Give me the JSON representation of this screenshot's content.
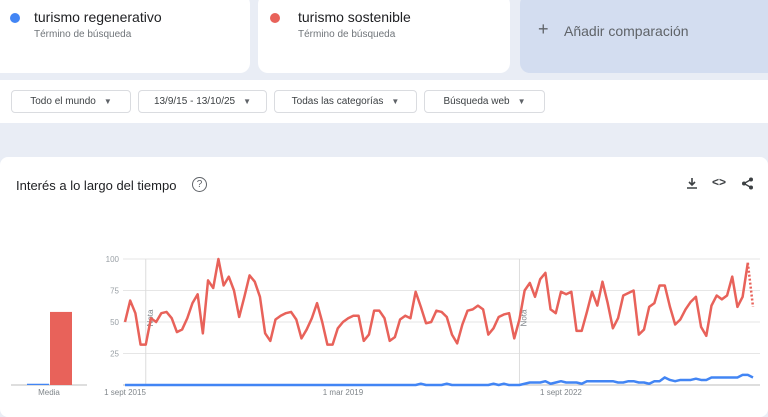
{
  "terms": [
    {
      "label": "turismo regenerativo",
      "sublabel": "Término de búsqueda",
      "color": "#4285f4"
    },
    {
      "label": "turismo sostenible",
      "sublabel": "Término de búsqueda",
      "color": "#e8625a"
    }
  ],
  "add_comparison": {
    "icon": "plus-icon",
    "label": "Añadir comparación"
  },
  "filters": {
    "region": "Todo el mundo",
    "dates": "13/9/15 - 13/10/25",
    "category": "Todas las categorías",
    "search_type": "Búsqueda web"
  },
  "section": {
    "title": "Interés a lo largo del tiempo",
    "icons": [
      "help-icon",
      "download-icon",
      "embed-icon",
      "share-icon"
    ]
  },
  "chart_data": {
    "type": "line",
    "ylim": [
      0,
      100
    ],
    "y_ticks": [
      "100",
      "75",
      "50",
      "25"
    ],
    "x_tick_labels": [
      {
        "x": "2015-09",
        "label": "1 sept 2015"
      },
      {
        "x": "2019-03",
        "label": "1 mar 2019"
      },
      {
        "x": "2022-09",
        "label": "1 sept 2022"
      }
    ],
    "notes": [
      {
        "x": "2016-01",
        "label": "Nota"
      },
      {
        "x": "2022-01",
        "label": "Nota"
      }
    ],
    "grid": true,
    "average": {
      "label": "Media",
      "values": [
        1,
        58
      ]
    },
    "x": [
      "2015-09",
      "2015-10",
      "2015-11",
      "2015-12",
      "2016-01",
      "2016-02",
      "2016-03",
      "2016-04",
      "2016-05",
      "2016-06",
      "2016-07",
      "2016-08",
      "2016-09",
      "2016-10",
      "2016-11",
      "2016-12",
      "2017-01",
      "2017-02",
      "2017-03",
      "2017-04",
      "2017-05",
      "2017-06",
      "2017-07",
      "2017-08",
      "2017-09",
      "2017-10",
      "2017-11",
      "2017-12",
      "2018-01",
      "2018-02",
      "2018-03",
      "2018-04",
      "2018-05",
      "2018-06",
      "2018-07",
      "2018-08",
      "2018-09",
      "2018-10",
      "2018-11",
      "2018-12",
      "2019-01",
      "2019-02",
      "2019-03",
      "2019-04",
      "2019-05",
      "2019-06",
      "2019-07",
      "2019-08",
      "2019-09",
      "2019-10",
      "2019-11",
      "2019-12",
      "2020-01",
      "2020-02",
      "2020-03",
      "2020-04",
      "2020-05",
      "2020-06",
      "2020-07",
      "2020-08",
      "2020-09",
      "2020-10",
      "2020-11",
      "2020-12",
      "2021-01",
      "2021-02",
      "2021-03",
      "2021-04",
      "2021-05",
      "2021-06",
      "2021-07",
      "2021-08",
      "2021-09",
      "2021-10",
      "2021-11",
      "2021-12",
      "2022-01",
      "2022-02",
      "2022-03",
      "2022-04",
      "2022-05",
      "2022-06",
      "2022-07",
      "2022-08",
      "2022-09",
      "2022-10",
      "2022-11",
      "2022-12",
      "2023-01",
      "2023-02",
      "2023-03",
      "2023-04",
      "2023-05",
      "2023-06",
      "2023-07",
      "2023-08",
      "2023-09",
      "2023-10",
      "2023-11",
      "2023-12",
      "2024-01",
      "2024-02",
      "2024-03",
      "2024-04",
      "2024-05",
      "2024-06",
      "2024-07",
      "2024-08",
      "2024-09",
      "2024-10",
      "2024-11",
      "2024-12",
      "2025-01",
      "2025-02",
      "2025-03",
      "2025-04",
      "2025-05",
      "2025-06",
      "2025-07",
      "2025-08",
      "2025-09",
      "2025-10"
    ],
    "series": [
      {
        "name": "turismo regenerativo",
        "color": "#4285f4",
        "values": [
          0,
          0,
          0,
          0,
          0,
          0,
          0,
          0,
          0,
          0,
          0,
          0,
          0,
          0,
          0,
          0,
          0,
          0,
          0,
          0,
          0,
          0,
          0,
          0,
          0,
          0,
          0,
          0,
          0,
          0,
          0,
          0,
          0,
          0,
          0,
          0,
          0,
          0,
          0,
          0,
          0,
          0,
          0,
          0,
          0,
          0,
          0,
          0,
          0,
          0,
          0,
          0,
          0,
          0,
          0,
          0,
          0,
          1,
          0,
          0,
          0,
          0,
          1,
          0,
          0,
          0,
          0,
          0,
          0,
          0,
          0,
          1,
          0,
          1,
          0,
          0,
          0,
          1,
          2,
          2,
          2,
          3,
          1,
          2,
          3,
          2,
          2,
          2,
          1,
          3,
          3,
          3,
          3,
          3,
          3,
          2,
          2,
          3,
          3,
          2,
          2,
          1,
          3,
          3,
          6,
          4,
          3,
          4,
          4,
          4,
          5,
          4,
          4,
          6,
          6,
          6,
          6,
          6,
          6,
          8,
          8,
          6
        ]
      },
      {
        "name": "turismo sostenible",
        "color": "#e8625a",
        "values": [
          50,
          67,
          57,
          32,
          32,
          53,
          50,
          57,
          58,
          53,
          42,
          44,
          53,
          65,
          72,
          41,
          83,
          77,
          100,
          79,
          86,
          75,
          54,
          70,
          87,
          82,
          70,
          41,
          35,
          52,
          55,
          57,
          58,
          52,
          37,
          44,
          53,
          65,
          50,
          32,
          32,
          45,
          50,
          53,
          55,
          55,
          35,
          40,
          59,
          59,
          53,
          35,
          38,
          52,
          55,
          53,
          74,
          62,
          49,
          50,
          59,
          58,
          54,
          40,
          33,
          48,
          59,
          60,
          63,
          60,
          40,
          45,
          54,
          56,
          57,
          37,
          52,
          75,
          81,
          70,
          84,
          89,
          60,
          57,
          74,
          72,
          74,
          43,
          43,
          58,
          74,
          63,
          82,
          65,
          45,
          53,
          71,
          73,
          75,
          40,
          44,
          62,
          65,
          79,
          79,
          62,
          48,
          52,
          60,
          66,
          70,
          46,
          39,
          63,
          71,
          68,
          71,
          86,
          62,
          70,
          97,
          62
        ]
      }
    ]
  }
}
